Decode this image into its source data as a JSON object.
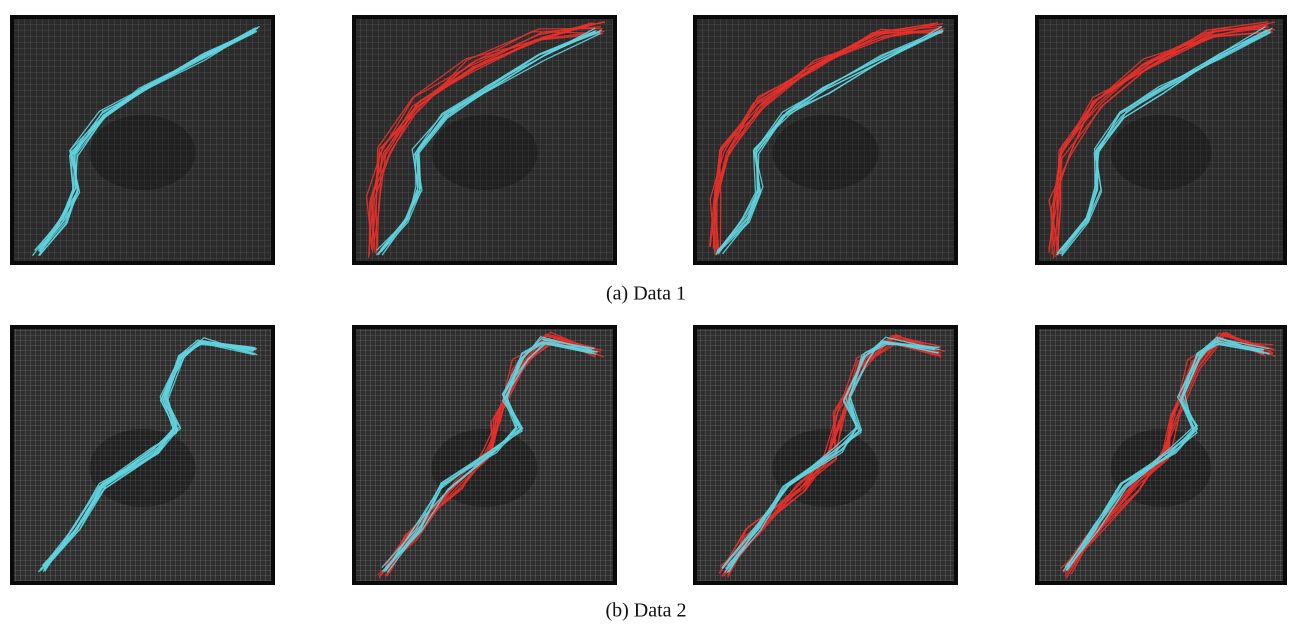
{
  "figure": {
    "rows": [
      {
        "caption": "(a) Data 1"
      },
      {
        "caption": "(b) Data 2"
      }
    ]
  }
}
